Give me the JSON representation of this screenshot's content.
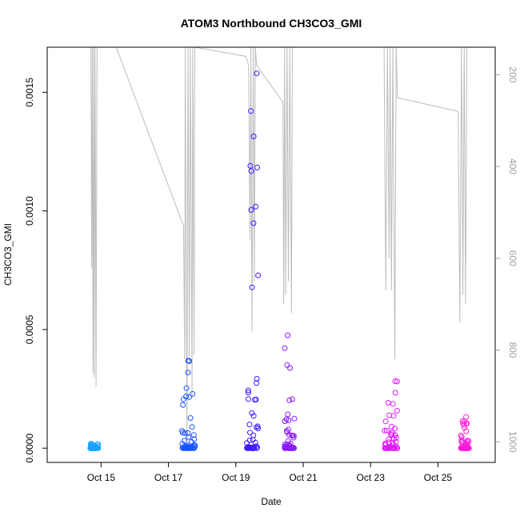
{
  "chart_data": {
    "type": "scatter",
    "title": "ATOM3 Northbound CH3CO3_GMI",
    "xlabel": "Date",
    "ylabel": "CH3CO3_GMI",
    "x_ticks": [
      "Oct 15",
      "Oct 17",
      "Oct 19",
      "Oct 21",
      "Oct 23",
      "Oct 25"
    ],
    "y_ticks": [
      "0.0000",
      "0.0005",
      "0.0010",
      "0.0015"
    ],
    "y_tick_values": [
      0,
      0.0005,
      0.001,
      0.0015
    ],
    "y2_ticks": [
      "200",
      "400",
      "600",
      "800",
      "1000"
    ],
    "y2_tick_values": [
      200,
      400,
      600,
      800,
      1000
    ],
    "xlim_days": [
      13.4,
      26.7
    ],
    "ylim": [
      -6e-05,
      0.00169
    ],
    "y2lim": [
      1045,
      140
    ],
    "y2_reversed": true,
    "grid": false,
    "legend": "none",
    "colors": {
      "flight1": "#1aa3ff",
      "flight2": "#1a55ff",
      "flight3": "#3d1aff",
      "flight4": "#8a1aff",
      "flight5": "#e01aff",
      "flight6": "#ff1ad9",
      "pressure_line": "#bdbdbd"
    },
    "flights": [
      {
        "center": 14.8,
        "width": 0.25,
        "ymax": 2e-05,
        "color": "flight1"
      },
      {
        "center": 17.6,
        "width": 0.4,
        "ymax": 0.00039,
        "color": "flight2"
      },
      {
        "center": 19.5,
        "width": 0.35,
        "ymax": 0.00163,
        "color": "flight3"
      },
      {
        "center": 20.6,
        "width": 0.3,
        "ymax": 0.00048,
        "color": "flight4"
      },
      {
        "center": 23.6,
        "width": 0.4,
        "ymax": 0.00031,
        "color": "flight5"
      },
      {
        "center": 25.8,
        "width": 0.25,
        "ymax": 0.00016,
        "color": "flight6"
      }
    ],
    "pressure_series": [
      [
        14.7,
        140
      ],
      [
        14.72,
        620
      ],
      [
        14.74,
        140
      ],
      [
        14.76,
        850
      ],
      [
        14.78,
        140
      ],
      [
        14.8,
        860
      ],
      [
        14.82,
        140
      ],
      [
        14.85,
        880
      ],
      [
        14.88,
        140
      ],
      [
        15.45,
        140
      ],
      [
        17.45,
        530
      ],
      [
        17.48,
        820
      ],
      [
        17.5,
        140
      ],
      [
        17.55,
        1000
      ],
      [
        17.58,
        140
      ],
      [
        17.62,
        830
      ],
      [
        17.65,
        140
      ],
      [
        17.7,
        900
      ],
      [
        17.72,
        140
      ],
      [
        17.76,
        810
      ],
      [
        17.78,
        140
      ],
      [
        19.3,
        160
      ],
      [
        19.38,
        180
      ],
      [
        19.42,
        560
      ],
      [
        19.45,
        140
      ],
      [
        19.48,
        760
      ],
      [
        19.52,
        140
      ],
      [
        19.55,
        650
      ],
      [
        19.58,
        140
      ],
      [
        19.62,
        180
      ],
      [
        20.4,
        260
      ],
      [
        20.42,
        700
      ],
      [
        20.45,
        140
      ],
      [
        20.48,
        680
      ],
      [
        20.52,
        140
      ],
      [
        20.56,
        650
      ],
      [
        20.6,
        140
      ],
      [
        20.65,
        720
      ],
      [
        20.68,
        140
      ],
      [
        23.4,
        140
      ],
      [
        23.45,
        670
      ],
      [
        23.5,
        140
      ],
      [
        23.55,
        600
      ],
      [
        23.58,
        140
      ],
      [
        23.62,
        670
      ],
      [
        23.66,
        140
      ],
      [
        23.72,
        820
      ],
      [
        23.76,
        140
      ],
      [
        23.8,
        250
      ],
      [
        25.6,
        280
      ],
      [
        25.65,
        740
      ],
      [
        25.7,
        140
      ],
      [
        25.74,
        680
      ],
      [
        25.78,
        140
      ],
      [
        25.82,
        700
      ],
      [
        25.86,
        140
      ]
    ]
  }
}
